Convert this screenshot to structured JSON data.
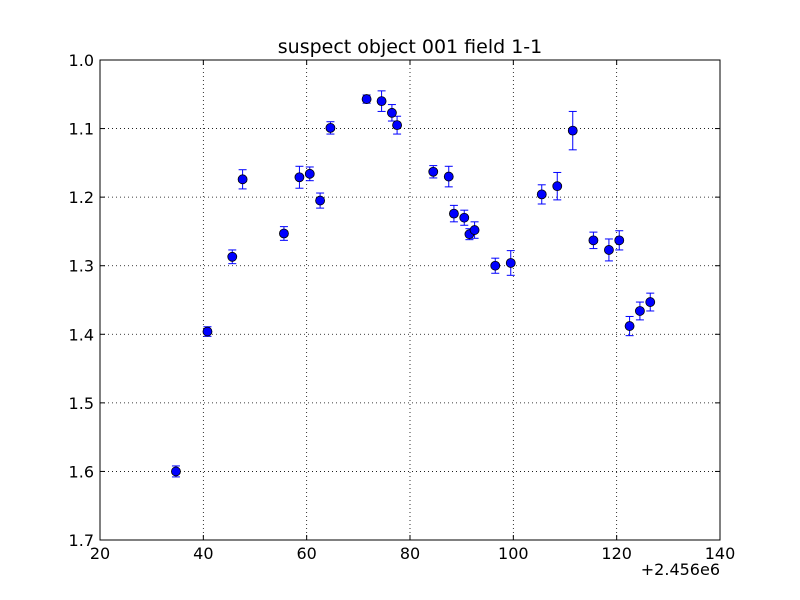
{
  "chart_data": {
    "type": "scatter",
    "title": "suspect object 001 field 1-1",
    "xlabel": "",
    "ylabel": "",
    "x_offset_label": "+2.456e6",
    "xlim": [
      20,
      140
    ],
    "ylim": [
      1.7,
      1.0
    ],
    "y_inverted": true,
    "grid": true,
    "grid_style": "dotted",
    "marker_color": "#0000ff",
    "x_ticks": [
      "20",
      "40",
      "60",
      "80",
      "100",
      "120",
      "140"
    ],
    "y_ticks": [
      "1.0",
      "1.1",
      "1.2",
      "1.3",
      "1.4",
      "1.5",
      "1.6",
      "1.7"
    ],
    "series": [
      {
        "points": [
          {
            "x": 34.7,
            "y": 1.6,
            "err": 0.008
          },
          {
            "x": 40.8,
            "y": 1.396,
            "err": 0.007
          },
          {
            "x": 45.6,
            "y": 1.287,
            "err": 0.01
          },
          {
            "x": 47.6,
            "y": 1.174,
            "err": 0.014
          },
          {
            "x": 55.6,
            "y": 1.253,
            "err": 0.01
          },
          {
            "x": 58.6,
            "y": 1.171,
            "err": 0.016
          },
          {
            "x": 60.6,
            "y": 1.166,
            "err": 0.01
          },
          {
            "x": 62.6,
            "y": 1.205,
            "err": 0.011
          },
          {
            "x": 64.6,
            "y": 1.099,
            "err": 0.009
          },
          {
            "x": 71.6,
            "y": 1.057,
            "err": 0.006
          },
          {
            "x": 74.5,
            "y": 1.06,
            "err": 0.015
          },
          {
            "x": 76.5,
            "y": 1.077,
            "err": 0.012
          },
          {
            "x": 77.5,
            "y": 1.095,
            "err": 0.013
          },
          {
            "x": 84.5,
            "y": 1.163,
            "err": 0.009
          },
          {
            "x": 87.5,
            "y": 1.17,
            "err": 0.015
          },
          {
            "x": 88.5,
            "y": 1.224,
            "err": 0.012
          },
          {
            "x": 90.5,
            "y": 1.23,
            "err": 0.011
          },
          {
            "x": 91.5,
            "y": 1.254,
            "err": 0.008
          },
          {
            "x": 92.5,
            "y": 1.248,
            "err": 0.012
          },
          {
            "x": 96.5,
            "y": 1.3,
            "err": 0.011
          },
          {
            "x": 99.5,
            "y": 1.296,
            "err": 0.018
          },
          {
            "x": 105.5,
            "y": 1.196,
            "err": 0.014
          },
          {
            "x": 108.5,
            "y": 1.184,
            "err": 0.02
          },
          {
            "x": 111.5,
            "y": 1.103,
            "err": 0.028
          },
          {
            "x": 115.5,
            "y": 1.263,
            "err": 0.012
          },
          {
            "x": 118.5,
            "y": 1.277,
            "err": 0.016
          },
          {
            "x": 120.5,
            "y": 1.263,
            "err": 0.014
          },
          {
            "x": 122.5,
            "y": 1.388,
            "err": 0.014
          },
          {
            "x": 124.5,
            "y": 1.366,
            "err": 0.013
          },
          {
            "x": 126.5,
            "y": 1.353,
            "err": 0.013
          }
        ]
      }
    ]
  }
}
